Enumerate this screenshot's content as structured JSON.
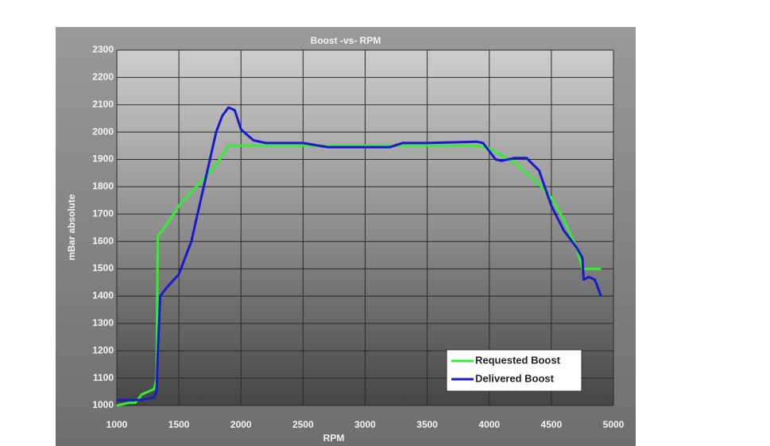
{
  "chart_data": {
    "type": "line",
    "title": "Boost -vs- RPM",
    "x_label": "RPM",
    "y_label": "mBar absolute",
    "xlim": [
      1000,
      5000
    ],
    "xticks": [
      1000,
      1500,
      2000,
      2500,
      3000,
      3500,
      4000,
      4500,
      5000
    ],
    "ylim": [
      1000,
      2300
    ],
    "yticks": [
      1000,
      1100,
      1200,
      1300,
      1400,
      1500,
      1600,
      1700,
      1800,
      1900,
      2000,
      2100,
      2200,
      2300
    ],
    "grid": true,
    "legend": "lower right",
    "series": [
      {
        "name": "Requested Boost",
        "color": "#33ee33",
        "x": [
          1000,
          1100,
          1150,
          1200,
          1250,
          1300,
          1320,
          1330,
          1400,
          1500,
          1600,
          1700,
          1800,
          1900,
          2000,
          2500,
          3000,
          3500,
          3900,
          4000,
          4200,
          4400,
          4500,
          4600,
          4700,
          4750,
          4900
        ],
        "values": [
          1000,
          1010,
          1010,
          1040,
          1050,
          1060,
          1100,
          1620,
          1660,
          1730,
          1780,
          1830,
          1880,
          1950,
          1950,
          1950,
          1950,
          1950,
          1950,
          1940,
          1890,
          1810,
          1760,
          1680,
          1580,
          1500,
          1500
        ]
      },
      {
        "name": "Delivered Boost",
        "color": "#1a1acc",
        "x": [
          1000,
          1200,
          1300,
          1320,
          1330,
          1350,
          1400,
          1500,
          1600,
          1700,
          1800,
          1850,
          1900,
          1950,
          2000,
          2100,
          2200,
          2500,
          2700,
          3000,
          3200,
          3300,
          3500,
          3900,
          3950,
          4050,
          4100,
          4200,
          4300,
          4400,
          4500,
          4600,
          4700,
          4750,
          4760,
          4800,
          4850,
          4900
        ],
        "values": [
          1020,
          1020,
          1030,
          1050,
          1200,
          1400,
          1430,
          1480,
          1600,
          1800,
          2000,
          2060,
          2090,
          2080,
          2010,
          1970,
          1960,
          1960,
          1945,
          1945,
          1945,
          1960,
          1960,
          1965,
          1960,
          1900,
          1895,
          1905,
          1905,
          1860,
          1730,
          1640,
          1580,
          1540,
          1460,
          1470,
          1460,
          1400
        ]
      }
    ]
  }
}
